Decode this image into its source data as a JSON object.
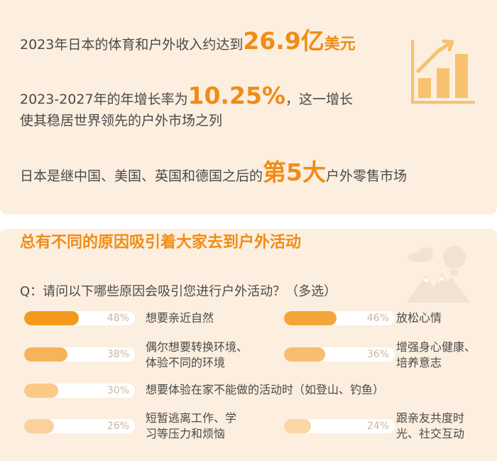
{
  "stats": {
    "line1_pre": "2023年日本的体育和户外收入约达到",
    "line1_num": "26.9亿",
    "line1_unit": "美元",
    "line2_pre": "2023-2027年的年增长率为",
    "line2_num": "10.25%",
    "line2_post": "，这一增长",
    "line3": "使其稳居世界领先的户外市场之列",
    "line4_pre": "日本是继中国、美国、英国和德国之后的",
    "line4_hl": "第5大",
    "line4_post": "户外零售市场"
  },
  "survey": {
    "title": "总有不同的原因吸引着大家去到户外活动",
    "question": "Q：请问以下哪些原因会吸引您进行户外活动？（多选）"
  },
  "chart_data": {
    "type": "bar",
    "unit": "%",
    "xlim": [
      0,
      100
    ],
    "categories": [
      "想要亲近自然",
      "放松心情",
      "偶尔想要转换环境、体验不同的环境",
      "增强身心健康、培养意志",
      "想要体验在家不能做的活动时（如登山、钓鱼）",
      "短暂逃离工作、学习等压力和烦恼",
      "跟亲友共度时光、社交互动"
    ],
    "values": [
      48,
      46,
      38,
      36,
      30,
      26,
      24
    ],
    "labels": [
      "48%",
      "46%",
      "38%",
      "36%",
      "30%",
      "26%",
      "24%"
    ],
    "display_lines": [
      [
        "想要亲近自然"
      ],
      [
        "放松心情"
      ],
      [
        "偶尔想要转换环境、",
        "体验不同的环境"
      ],
      [
        "增强身心健康、",
        "培养意志"
      ],
      [
        "想要体验在家不能做的活动时（如登山、钓鱼）"
      ],
      [
        "短暂逃离工作、学",
        "习等压力和烦恼"
      ],
      [
        "跟亲友共度时",
        "光、社交互动"
      ]
    ],
    "colors": [
      "#f39a1e",
      "#f5a43a",
      "#f7b35a",
      "#f8bd6e",
      "#fac887",
      "#fbd09a",
      "#fbd6a6"
    ]
  },
  "icons": {
    "growth": "bar-chart-growth-icon",
    "outdoor": "mountain-balloon-icon"
  },
  "colors": {
    "accent": "#f08c16",
    "panel": "#fcefdf",
    "text": "#4a4a4a",
    "track": "#ffffff",
    "pct_text": "#c9b7a1"
  }
}
